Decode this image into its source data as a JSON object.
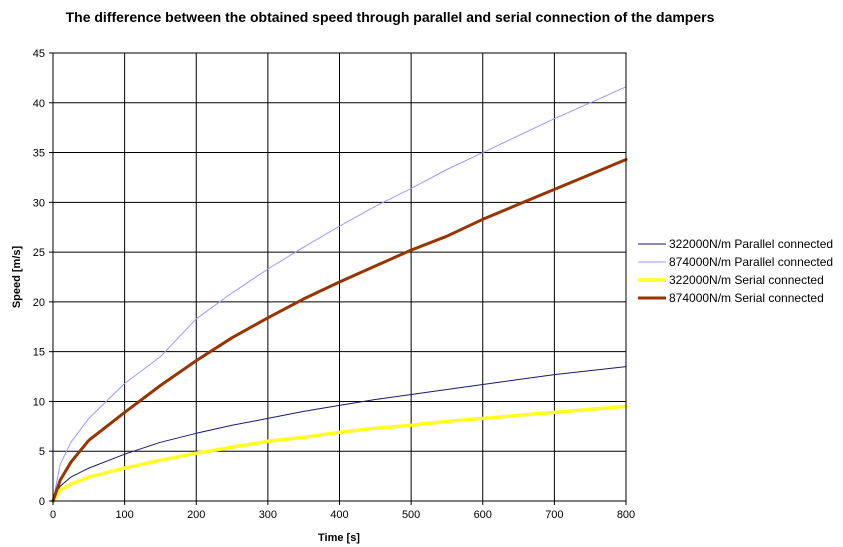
{
  "chart_data": {
    "type": "line",
    "title": "The difference between the obtained speed through parallel and serial connection of the dampers",
    "xlabel": "Time [s]",
    "ylabel": "Speed [m/s]",
    "xlim": [
      0,
      800
    ],
    "ylim": [
      0,
      45
    ],
    "xticks": [
      0,
      100,
      200,
      300,
      400,
      500,
      600,
      700,
      800
    ],
    "yticks": [
      0,
      5,
      10,
      15,
      20,
      25,
      30,
      35,
      40,
      45
    ],
    "grid": true,
    "legend_position": "right",
    "x": [
      0,
      10,
      25,
      50,
      100,
      150,
      200,
      250,
      300,
      350,
      400,
      450,
      500,
      550,
      600,
      650,
      700,
      750,
      800
    ],
    "series": [
      {
        "name": "322000N/m Parallel connected",
        "color": "#1a1a6e",
        "width": 1,
        "values": [
          0,
          1.5,
          2.4,
          3.3,
          4.7,
          5.9,
          6.8,
          7.6,
          8.3,
          9.0,
          9.6,
          10.2,
          10.7,
          11.2,
          11.7,
          12.2,
          12.7,
          13.1,
          13.5
        ]
      },
      {
        "name": "874000N/m Parallel connected",
        "color": "#9999ff",
        "width": 1,
        "values": [
          0,
          3.7,
          5.9,
          8.3,
          11.8,
          14.5,
          18.3,
          20.9,
          23.3,
          25.5,
          27.6,
          29.6,
          31.4,
          33.3,
          35.0,
          36.7,
          38.4,
          40.0,
          41.6
        ]
      },
      {
        "name": "322000N/m Serial connected",
        "color": "#ffff22",
        "width": 3.5,
        "values": [
          0,
          1.1,
          1.7,
          2.4,
          3.3,
          4.1,
          4.8,
          5.4,
          6.0,
          6.4,
          6.9,
          7.3,
          7.6,
          8.0,
          8.3,
          8.6,
          8.9,
          9.2,
          9.5
        ]
      },
      {
        "name": "874000N/m Serial connected",
        "color": "#993300",
        "width": 3,
        "values": [
          0,
          2.1,
          3.9,
          6.1,
          8.9,
          11.6,
          14.1,
          16.4,
          18.4,
          20.3,
          22.0,
          23.6,
          25.2,
          26.6,
          28.3,
          29.8,
          31.3,
          32.8,
          34.3
        ]
      }
    ]
  }
}
